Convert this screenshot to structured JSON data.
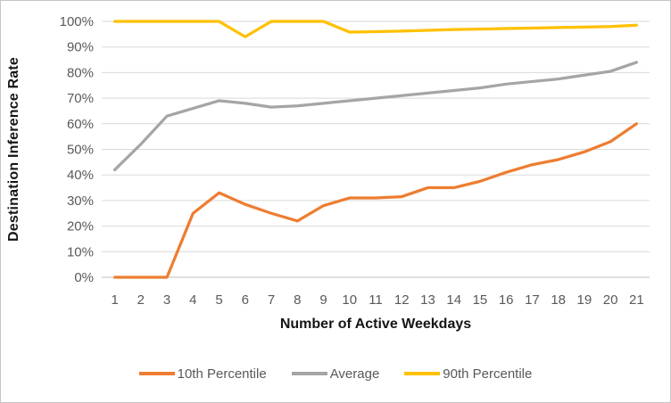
{
  "chart_data": {
    "type": "line",
    "title": "",
    "xlabel": "Number of Active Weekdays",
    "ylabel": "Destination Inference Rate",
    "categories": [
      1,
      2,
      3,
      4,
      5,
      6,
      7,
      8,
      9,
      10,
      11,
      12,
      13,
      14,
      15,
      16,
      17,
      18,
      19,
      20,
      21
    ],
    "y_tick_labels": [
      "0%",
      "10%",
      "20%",
      "30%",
      "40%",
      "50%",
      "60%",
      "70%",
      "80%",
      "90%",
      "100%"
    ],
    "ylim": [
      0,
      100
    ],
    "grid": true,
    "legend_position": "bottom",
    "series": [
      {
        "name": "10th Percentile",
        "color": "#ED7D31",
        "values": [
          0,
          0,
          0,
          25,
          33,
          28.5,
          25,
          22,
          28,
          31,
          31,
          31.5,
          35,
          35,
          37.5,
          41,
          44,
          46,
          49,
          53,
          60
        ]
      },
      {
        "name": "Average",
        "color": "#A5A5A5",
        "values": [
          42,
          52,
          63,
          66,
          69,
          68,
          66.5,
          67,
          68,
          69,
          70,
          71,
          72,
          73,
          74,
          75.5,
          76.5,
          77.5,
          79,
          80.5,
          84
        ]
      },
      {
        "name": "90th Percentile",
        "color": "#FFC000",
        "values": [
          100,
          100,
          100,
          100,
          100,
          94,
          100,
          100,
          100,
          95.8,
          96,
          96.2,
          96.5,
          96.8,
          97,
          97.2,
          97.4,
          97.6,
          97.8,
          98,
          98.5
        ]
      }
    ],
    "style": {
      "tick_label_color": "#595959",
      "axis_title_color": "#151515",
      "gridline_color": "#D9D9D9",
      "axis_line_color": "#BFBFBF",
      "legend_text_color": "#595959",
      "frame_border_color": "#C6C6C6",
      "background_color": "#FFFFFF"
    }
  }
}
